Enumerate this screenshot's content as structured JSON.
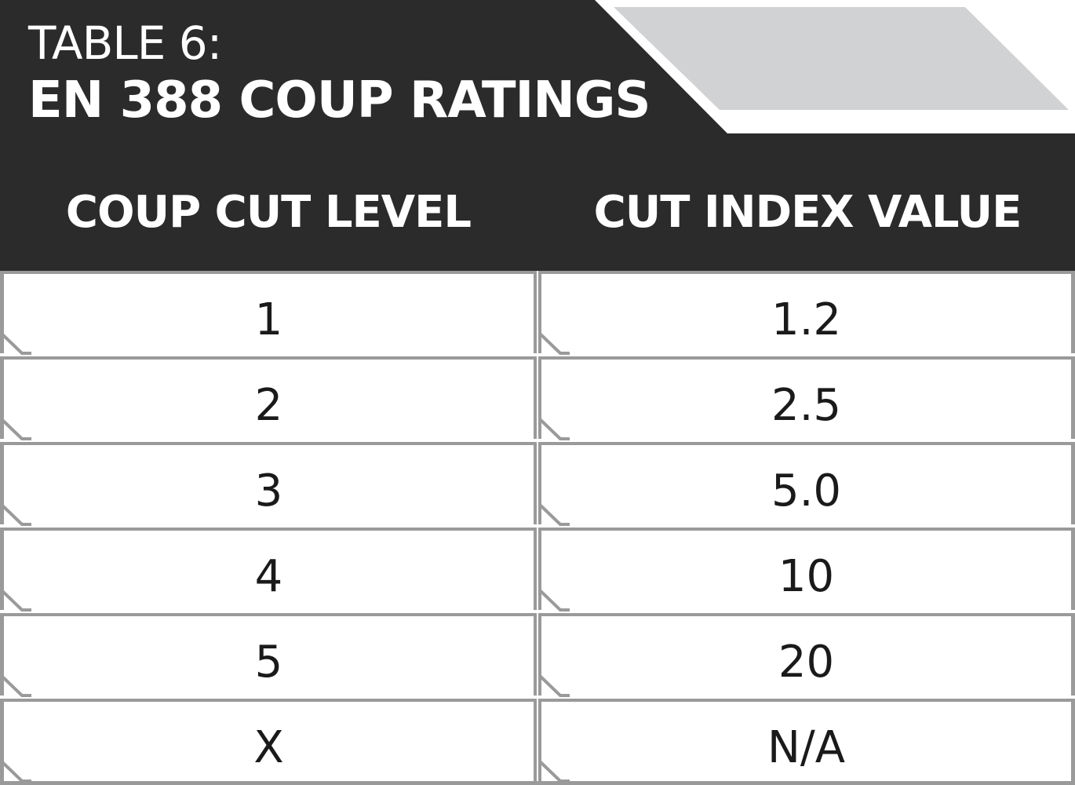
{
  "title": {
    "label": "TABLE 6:",
    "heading": "EN 388 COUP RATINGS"
  },
  "columns": [
    "COUP CUT LEVEL",
    "CUT INDEX VALUE"
  ],
  "rows": [
    {
      "level": "1",
      "index": "1.2"
    },
    {
      "level": "2",
      "index": "2.5"
    },
    {
      "level": "3",
      "index": "5.0"
    },
    {
      "level": "4",
      "index": "10"
    },
    {
      "level": "5",
      "index": "20"
    },
    {
      "level": "X",
      "index": "N/A"
    }
  ],
  "colors": {
    "header_bg": "#2b2b2b",
    "tab_gray": "#d1d2d4",
    "border_gray": "#9a9a9a",
    "text_dark": "#1a1a1a"
  }
}
